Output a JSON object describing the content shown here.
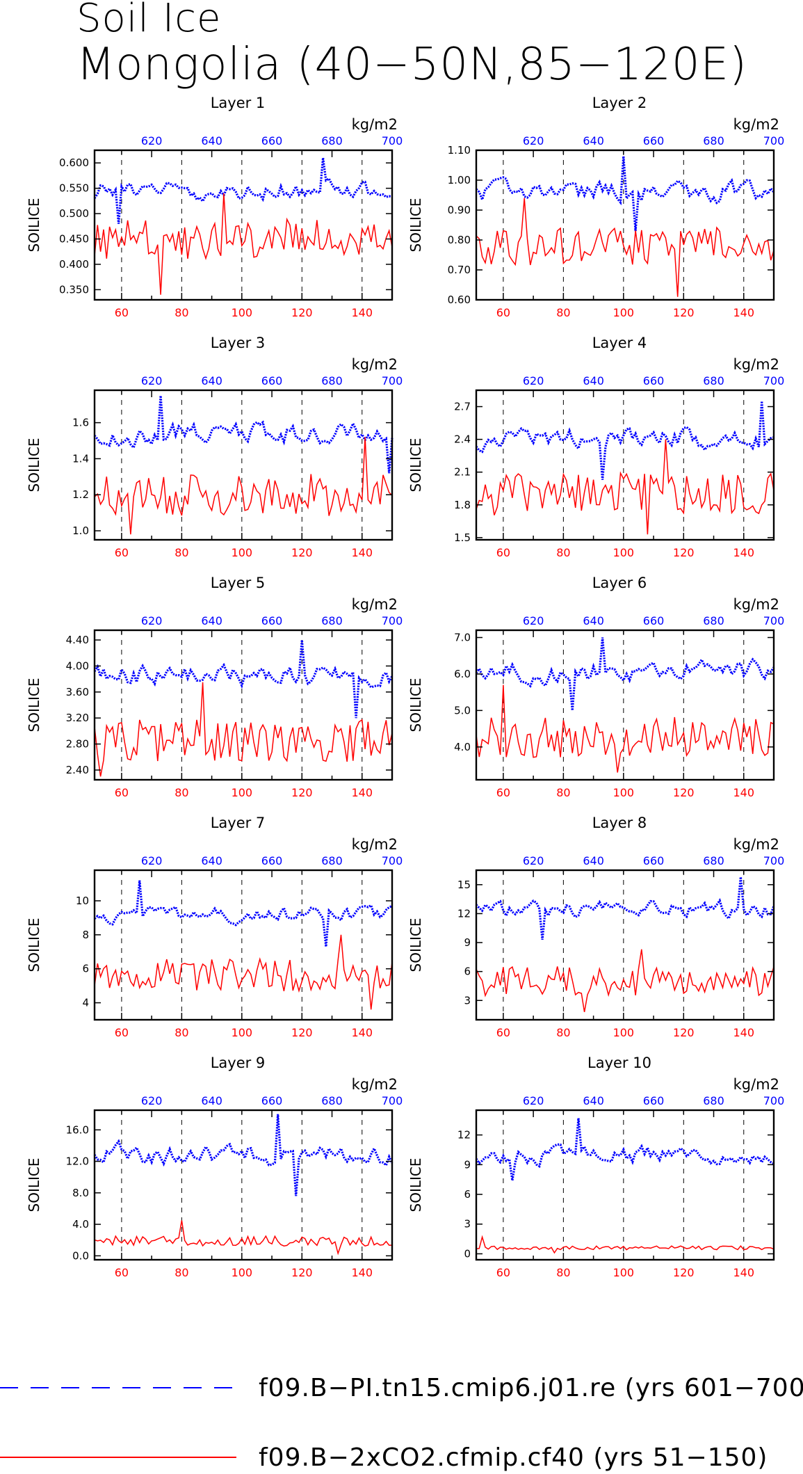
{
  "figure": {
    "title_line1": "Soil Ice",
    "title_line2": "Mongolia (40−50N,85−120E)",
    "units": "kg/m2",
    "ylabel": "SOILICE"
  },
  "legend": [
    {
      "name": "f09.B−PI.tn15.cmip6.j01.re (yrs 601−700)",
      "color": "#0000ff",
      "style": "dashed"
    },
    {
      "name": "f09.B−2xCO2.cfmip.cf40 (yrs 51−150)",
      "color": "#ff0000",
      "style": "solid"
    }
  ],
  "chart_data": [
    {
      "type": "line",
      "title": "Layer 1",
      "ylabel": "SOILICE",
      "units": "kg/m2",
      "ylim": [
        0.33,
        0.625
      ],
      "yticks": [
        0.35,
        0.4,
        0.45,
        0.5,
        0.55,
        0.6
      ],
      "ytick_decimals": 3,
      "x_bottom": {
        "range": [
          51,
          150
        ],
        "ticks": [
          60,
          80,
          100,
          120,
          140
        ]
      },
      "x_top": {
        "range": [
          601,
          700
        ],
        "ticks": [
          620,
          640,
          660,
          680,
          700
        ]
      },
      "series": [
        {
          "color": "#0000ff",
          "axis": "top",
          "mean": 0.545,
          "amp": 0.025,
          "min": 0.48,
          "max": 0.61,
          "seed": 11
        },
        {
          "color": "#ff0000",
          "axis": "bottom",
          "mean": 0.45,
          "amp": 0.03,
          "min": 0.34,
          "max": 0.54,
          "seed": 12
        }
      ]
    },
    {
      "type": "line",
      "title": "Layer 2",
      "ylabel": "SOILICE",
      "units": "kg/m2",
      "ylim": [
        0.6,
        1.1
      ],
      "yticks": [
        0.6,
        0.7,
        0.8,
        0.9,
        1.0,
        1.1
      ],
      "ytick_decimals": 2,
      "x_bottom": {
        "range": [
          51,
          150
        ],
        "ticks": [
          60,
          80,
          100,
          120,
          140
        ]
      },
      "x_top": {
        "range": [
          601,
          700
        ],
        "ticks": [
          620,
          640,
          660,
          680,
          700
        ]
      },
      "series": [
        {
          "color": "#0000ff",
          "axis": "top",
          "mean": 0.96,
          "amp": 0.045,
          "min": 0.83,
          "max": 1.08,
          "seed": 21
        },
        {
          "color": "#ff0000",
          "axis": "bottom",
          "mean": 0.78,
          "amp": 0.05,
          "min": 0.61,
          "max": 0.94,
          "seed": 22
        }
      ]
    },
    {
      "type": "line",
      "title": "Layer 3",
      "ylabel": "SOILICE",
      "units": "kg/m2",
      "ylim": [
        0.95,
        1.78
      ],
      "yticks": [
        1.0,
        1.2,
        1.4,
        1.6
      ],
      "ytick_decimals": 1,
      "x_bottom": {
        "range": [
          51,
          150
        ],
        "ticks": [
          60,
          80,
          100,
          120,
          140
        ]
      },
      "x_top": {
        "range": [
          601,
          700
        ],
        "ticks": [
          620,
          640,
          660,
          680,
          700
        ]
      },
      "series": [
        {
          "color": "#0000ff",
          "axis": "top",
          "mean": 1.54,
          "amp": 0.08,
          "min": 1.32,
          "max": 1.75,
          "seed": 31
        },
        {
          "color": "#ff0000",
          "axis": "bottom",
          "mean": 1.2,
          "amp": 0.09,
          "min": 0.98,
          "max": 1.52,
          "seed": 32
        }
      ]
    },
    {
      "type": "line",
      "title": "Layer 4",
      "ylabel": "SOILICE",
      "units": "kg/m2",
      "ylim": [
        1.48,
        2.85
      ],
      "yticks": [
        1.5,
        1.8,
        2.1,
        2.4,
        2.7
      ],
      "ytick_decimals": 1,
      "x_bottom": {
        "range": [
          51,
          150
        ],
        "ticks": [
          60,
          80,
          100,
          120,
          140
        ]
      },
      "x_top": {
        "range": [
          601,
          700
        ],
        "ticks": [
          620,
          640,
          660,
          680,
          700
        ]
      },
      "series": [
        {
          "color": "#0000ff",
          "axis": "top",
          "mean": 2.4,
          "amp": 0.13,
          "min": 2.03,
          "max": 2.75,
          "seed": 41
        },
        {
          "color": "#ff0000",
          "axis": "bottom",
          "mean": 1.9,
          "amp": 0.15,
          "min": 1.53,
          "max": 2.4,
          "seed": 42
        }
      ]
    },
    {
      "type": "line",
      "title": "Layer 5",
      "ylabel": "SOILICE",
      "units": "kg/m2",
      "ylim": [
        2.25,
        4.55
      ],
      "yticks": [
        2.4,
        2.8,
        3.2,
        3.6,
        4.0,
        4.4
      ],
      "ytick_decimals": 2,
      "x_bottom": {
        "range": [
          51,
          150
        ],
        "ticks": [
          60,
          80,
          100,
          120,
          140
        ]
      },
      "x_top": {
        "range": [
          601,
          700
        ],
        "ticks": [
          620,
          640,
          660,
          680,
          700
        ]
      },
      "series": [
        {
          "color": "#0000ff",
          "axis": "top",
          "mean": 3.85,
          "amp": 0.22,
          "min": 3.2,
          "max": 4.4,
          "seed": 51
        },
        {
          "color": "#ff0000",
          "axis": "bottom",
          "mean": 2.85,
          "amp": 0.25,
          "min": 2.3,
          "max": 3.75,
          "seed": 52
        }
      ]
    },
    {
      "type": "line",
      "title": "Layer 6",
      "ylabel": "SOILICE",
      "units": "kg/m2",
      "ylim": [
        3.1,
        7.2
      ],
      "yticks": [
        4.0,
        5.0,
        6.0,
        7.0
      ],
      "ytick_decimals": 1,
      "x_bottom": {
        "range": [
          51,
          150
        ],
        "ticks": [
          60,
          80,
          100,
          120,
          140
        ]
      },
      "x_top": {
        "range": [
          601,
          700
        ],
        "ticks": [
          620,
          640,
          660,
          680,
          700
        ]
      },
      "series": [
        {
          "color": "#0000ff",
          "axis": "top",
          "mean": 6.05,
          "amp": 0.4,
          "min": 5.0,
          "max": 7.0,
          "seed": 61
        },
        {
          "color": "#ff0000",
          "axis": "bottom",
          "mean": 4.3,
          "amp": 0.45,
          "min": 3.3,
          "max": 5.7,
          "seed": 62
        }
      ]
    },
    {
      "type": "line",
      "title": "Layer 7",
      "ylabel": "SOILICE",
      "units": "kg/m2",
      "ylim": [
        3.0,
        11.8
      ],
      "yticks": [
        4,
        6,
        8,
        10
      ],
      "ytick_decimals": 0,
      "x_bottom": {
        "range": [
          51,
          150
        ],
        "ticks": [
          60,
          80,
          100,
          120,
          140
        ]
      },
      "x_top": {
        "range": [
          601,
          700
        ],
        "ticks": [
          620,
          640,
          660,
          680,
          700
        ]
      },
      "series": [
        {
          "color": "#0000ff",
          "axis": "top",
          "mean": 9.2,
          "amp": 0.6,
          "min": 7.3,
          "max": 11.2,
          "seed": 71
        },
        {
          "color": "#ff0000",
          "axis": "bottom",
          "mean": 5.6,
          "amp": 0.8,
          "min": 3.6,
          "max": 8.0,
          "seed": 72
        }
      ]
    },
    {
      "type": "line",
      "title": "Layer 8",
      "ylabel": "SOILICE",
      "units": "kg/m2",
      "ylim": [
        1.0,
        16.5
      ],
      "yticks": [
        3,
        6,
        9,
        12,
        15
      ],
      "ytick_decimals": 0,
      "x_bottom": {
        "range": [
          51,
          150
        ],
        "ticks": [
          60,
          80,
          100,
          120,
          140
        ]
      },
      "x_top": {
        "range": [
          601,
          700
        ],
        "ticks": [
          620,
          640,
          660,
          680,
          700
        ]
      },
      "series": [
        {
          "color": "#0000ff",
          "axis": "top",
          "mean": 12.5,
          "amp": 1.1,
          "min": 9.3,
          "max": 15.8,
          "seed": 81
        },
        {
          "color": "#ff0000",
          "axis": "bottom",
          "mean": 5.0,
          "amp": 1.2,
          "min": 1.8,
          "max": 8.3,
          "seed": 82
        }
      ]
    },
    {
      "type": "line",
      "title": "Layer 9",
      "ylabel": "SOILICE",
      "units": "kg/m2",
      "ylim": [
        -0.5,
        18.5
      ],
      "yticks": [
        0.0,
        4.0,
        8.0,
        12.0,
        16.0
      ],
      "ytick_decimals": 1,
      "x_bottom": {
        "range": [
          51,
          150
        ],
        "ticks": [
          60,
          80,
          100,
          120,
          140
        ]
      },
      "x_top": {
        "range": [
          601,
          700
        ],
        "ticks": [
          620,
          640,
          660,
          680,
          700
        ]
      },
      "series": [
        {
          "color": "#0000ff",
          "axis": "top",
          "mean": 12.8,
          "amp": 1.8,
          "min": 7.6,
          "max": 18.0,
          "seed": 91
        },
        {
          "color": "#ff0000",
          "axis": "bottom",
          "mean": 1.9,
          "amp": 0.5,
          "min": 0.3,
          "max": 4.5,
          "seed": 92
        }
      ]
    },
    {
      "type": "line",
      "title": "Layer 10",
      "ylabel": "SOILICE",
      "units": "kg/m2",
      "ylim": [
        -0.6,
        14.5
      ],
      "yticks": [
        0,
        3,
        6,
        9,
        12
      ],
      "ytick_decimals": 0,
      "x_bottom": {
        "range": [
          51,
          150
        ],
        "ticks": [
          60,
          80,
          100,
          120,
          140
        ]
      },
      "x_top": {
        "range": [
          601,
          700
        ],
        "ticks": [
          620,
          640,
          660,
          680,
          700
        ]
      },
      "series": [
        {
          "color": "#0000ff",
          "axis": "top",
          "mean": 10.0,
          "amp": 1.2,
          "min": 7.4,
          "max": 13.7,
          "seed": 101
        },
        {
          "color": "#ff0000",
          "axis": "bottom",
          "mean": 0.6,
          "amp": 0.15,
          "min": 0.1,
          "max": 1.7,
          "seed": 102
        }
      ]
    }
  ]
}
